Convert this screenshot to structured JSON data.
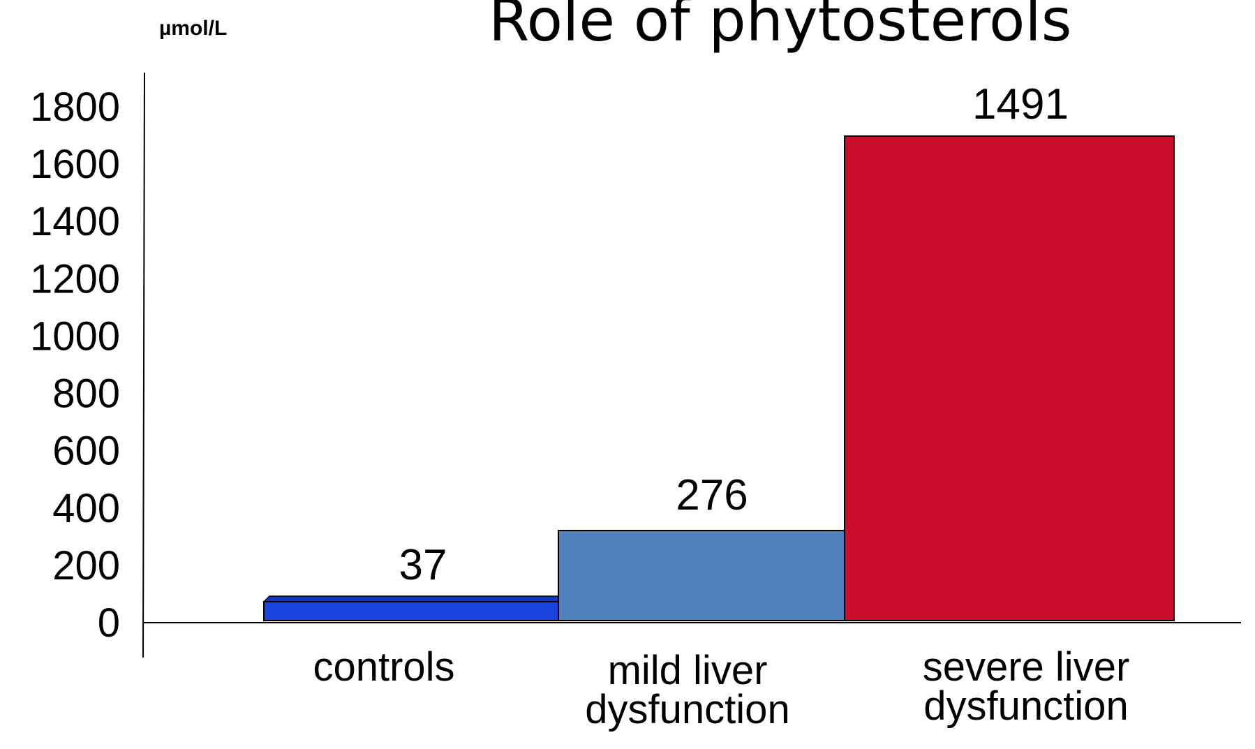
{
  "chart_data": {
    "type": "bar",
    "title": "Role of phytosterols",
    "ylabel": "µmol/L",
    "xlabel": "",
    "ylim": [
      0,
      1800
    ],
    "yticks": [
      0,
      200,
      400,
      600,
      800,
      1000,
      1200,
      1400,
      1600,
      1800
    ],
    "categories": [
      [
        "controls"
      ],
      [
        "mild liver",
        "dysfunction"
      ],
      [
        "severe liver",
        "dysfunction"
      ]
    ],
    "values": [
      37,
      276,
      1491
    ],
    "data_labels": [
      "37",
      "276",
      "1491"
    ],
    "colors": [
      "#1a44e0",
      "#4f82bd",
      "#cc0e2e"
    ],
    "grid": false,
    "legend": "none"
  }
}
